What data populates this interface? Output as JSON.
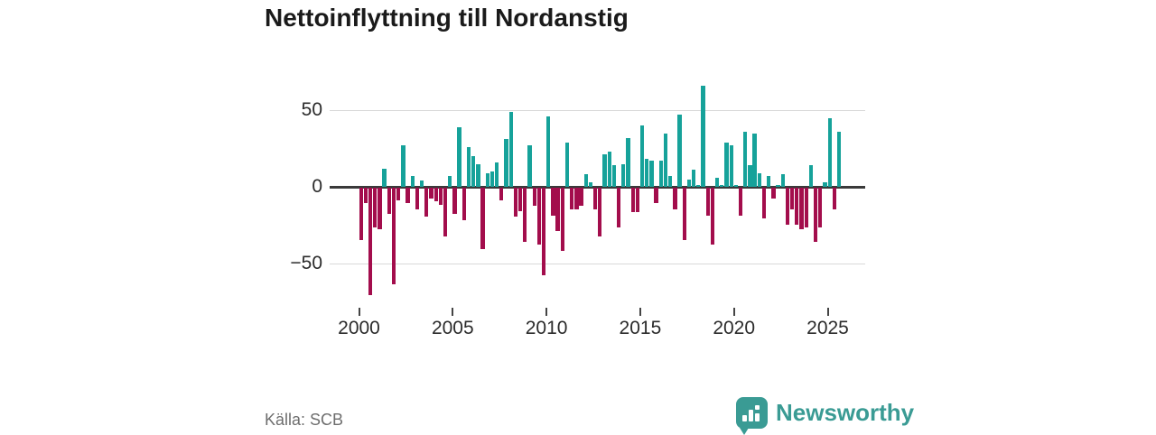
{
  "header": {
    "title": "Nettoinflyttning till Nordanstig"
  },
  "footer": {
    "source_label": "Källa: SCB",
    "brand_name": "Newsworthy",
    "brand_color": "#3a9b94",
    "brand_icon": "bar-chart-speech-bubble-icon"
  },
  "chart_data": {
    "type": "bar",
    "title": "Nettoinflyttning till Nordanstig",
    "xlabel": "",
    "ylabel": "",
    "x_unit": "quarter",
    "grid": true,
    "legend": "none",
    "ylim": [
      -75,
      70
    ],
    "yticks": [
      {
        "label": "50",
        "value": 50
      },
      {
        "label": "0",
        "value": 0
      },
      {
        "label": "−50",
        "value": -50
      }
    ],
    "xticks": [
      {
        "label": "2000",
        "year": 2000
      },
      {
        "label": "2005",
        "year": 2005
      },
      {
        "label": "2010",
        "year": 2010
      },
      {
        "label": "2015",
        "year": 2015
      },
      {
        "label": "2020",
        "year": 2020
      },
      {
        "label": "2025",
        "year": 2025
      }
    ],
    "colors": {
      "positive": "#16a29a",
      "negative": "#a30d4c"
    },
    "series_name": "Nettoinflyttning (personer per kvartal)",
    "x": [
      "2000Q1",
      "2000Q2",
      "2000Q3",
      "2000Q4",
      "2001Q1",
      "2001Q2",
      "2001Q3",
      "2001Q4",
      "2002Q1",
      "2002Q2",
      "2002Q3",
      "2002Q4",
      "2003Q1",
      "2003Q2",
      "2003Q3",
      "2003Q4",
      "2004Q1",
      "2004Q2",
      "2004Q3",
      "2004Q4",
      "2005Q1",
      "2005Q2",
      "2005Q3",
      "2005Q4",
      "2006Q1",
      "2006Q2",
      "2006Q3",
      "2006Q4",
      "2007Q1",
      "2007Q2",
      "2007Q3",
      "2007Q4",
      "2008Q1",
      "2008Q2",
      "2008Q3",
      "2008Q4",
      "2009Q1",
      "2009Q2",
      "2009Q3",
      "2009Q4",
      "2010Q1",
      "2010Q2",
      "2010Q3",
      "2010Q4",
      "2011Q1",
      "2011Q2",
      "2011Q3",
      "2011Q4",
      "2012Q1",
      "2012Q2",
      "2012Q3",
      "2012Q4",
      "2013Q1",
      "2013Q2",
      "2013Q3",
      "2013Q4",
      "2014Q1",
      "2014Q2",
      "2014Q3",
      "2014Q4",
      "2015Q1",
      "2015Q2",
      "2015Q3",
      "2015Q4",
      "2016Q1",
      "2016Q2",
      "2016Q3",
      "2016Q4",
      "2017Q1",
      "2017Q2",
      "2017Q3",
      "2017Q4",
      "2018Q1",
      "2018Q2",
      "2018Q3",
      "2018Q4",
      "2019Q1",
      "2019Q2",
      "2019Q3",
      "2019Q4",
      "2020Q1",
      "2020Q2",
      "2020Q3",
      "2020Q4",
      "2021Q1",
      "2021Q2",
      "2021Q3",
      "2021Q4",
      "2022Q1",
      "2022Q2",
      "2022Q3",
      "2022Q4",
      "2023Q1",
      "2023Q2",
      "2023Q3",
      "2023Q4",
      "2024Q1",
      "2024Q2",
      "2024Q3",
      "2024Q4",
      "2025Q1",
      "2025Q2",
      "2025Q3"
    ],
    "values": [
      -34,
      -10,
      -70,
      -26,
      -27,
      12,
      -17,
      -63,
      -8,
      27,
      -10,
      7,
      -14,
      4,
      -19,
      -7,
      -9,
      -11,
      -32,
      7,
      -17,
      39,
      -21,
      26,
      20,
      15,
      -40,
      9,
      10,
      16,
      -8,
      31,
      49,
      -19,
      -15,
      -35,
      27,
      -12,
      -37,
      -57,
      46,
      -18,
      -28,
      -41,
      29,
      -14,
      -14,
      -12,
      8,
      3,
      -14,
      -32,
      21,
      23,
      14,
      -26,
      15,
      32,
      -16,
      -16,
      40,
      18,
      17,
      -10,
      17,
      35,
      7,
      -14,
      47,
      -34,
      5,
      11,
      1,
      66,
      -18,
      -37,
      6,
      1,
      29,
      27,
      1,
      -18,
      36,
      14,
      35,
      9,
      -20,
      7,
      -7,
      1,
      8,
      -24,
      -14,
      -24,
      -27,
      -26,
      14,
      -35,
      -26,
      3,
      45,
      -14,
      36
    ]
  }
}
